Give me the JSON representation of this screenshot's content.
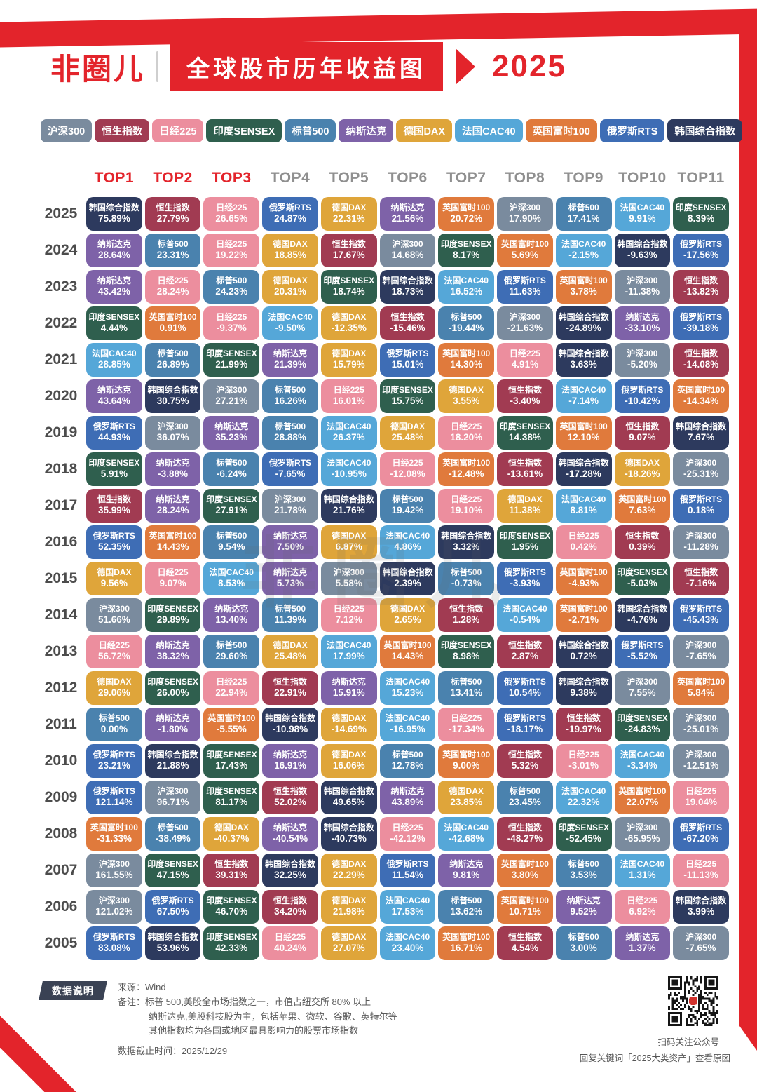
{
  "header": {
    "logo": "非圈儿",
    "title": "全球股市历年收益图",
    "year": "2025"
  },
  "watermark": "非圈儿",
  "accent_red": "#E3242B",
  "legend_order": [
    "沪深300",
    "恒生指数",
    "日经225",
    "印度SENSEX",
    "标普500",
    "纳斯达克",
    "德国DAX",
    "法国CAC40",
    "英国富时100",
    "俄罗斯RTS",
    "韩国综合指数"
  ],
  "index_colors": {
    "沪深300": "#7A8B9E",
    "恒生指数": "#A13B52",
    "日经225": "#EC8E9E",
    "印度SENSEX": "#2F5F4E",
    "标普500": "#4A82AE",
    "纳斯达克": "#7E62A8",
    "德国DAX": "#DFA53A",
    "法国CAC40": "#55A7D8",
    "英国富时100": "#E07A3C",
    "俄罗斯RTS": "#3E6DB5",
    "韩国综合指数": "#2D3A5E"
  },
  "chart_data": {
    "type": "heatmap",
    "title": "全球股市历年收益图 2025",
    "legend_position": "top",
    "columns": [
      "TOP1",
      "TOP2",
      "TOP3",
      "TOP4",
      "TOP5",
      "TOP6",
      "TOP7",
      "TOP8",
      "TOP9",
      "TOP10",
      "TOP11"
    ],
    "rows": [
      {
        "year": "2025",
        "cells": [
          [
            "韩国综合指数",
            "75.89%"
          ],
          [
            "恒生指数",
            "27.79%"
          ],
          [
            "日经225",
            "26.65%"
          ],
          [
            "俄罗斯RTS",
            "24.87%"
          ],
          [
            "德国DAX",
            "22.31%"
          ],
          [
            "纳斯达克",
            "21.56%"
          ],
          [
            "英国富时100",
            "20.72%"
          ],
          [
            "沪深300",
            "17.90%"
          ],
          [
            "标普500",
            "17.41%"
          ],
          [
            "法国CAC40",
            "9.91%"
          ],
          [
            "印度SENSEX",
            "8.39%"
          ]
        ]
      },
      {
        "year": "2024",
        "cells": [
          [
            "纳斯达克",
            "28.64%"
          ],
          [
            "标普500",
            "23.31%"
          ],
          [
            "日经225",
            "19.22%"
          ],
          [
            "德国DAX",
            "18.85%"
          ],
          [
            "恒生指数",
            "17.67%"
          ],
          [
            "沪深300",
            "14.68%"
          ],
          [
            "印度SENSEX",
            "8.17%"
          ],
          [
            "英国富时100",
            "5.69%"
          ],
          [
            "法国CAC40",
            "-2.15%"
          ],
          [
            "韩国综合指数",
            "-9.63%"
          ],
          [
            "俄罗斯RTS",
            "-17.56%"
          ]
        ]
      },
      {
        "year": "2023",
        "cells": [
          [
            "纳斯达克",
            "43.42%"
          ],
          [
            "日经225",
            "28.24%"
          ],
          [
            "标普500",
            "24.23%"
          ],
          [
            "德国DAX",
            "20.31%"
          ],
          [
            "印度SENSEX",
            "18.74%"
          ],
          [
            "韩国综合指数",
            "18.73%"
          ],
          [
            "法国CAC40",
            "16.52%"
          ],
          [
            "俄罗斯RTS",
            "11.63%"
          ],
          [
            "英国富时100",
            "3.78%"
          ],
          [
            "沪深300",
            "-11.38%"
          ],
          [
            "恒生指数",
            "-13.82%"
          ]
        ]
      },
      {
        "year": "2022",
        "cells": [
          [
            "印度SENSEX",
            "4.44%"
          ],
          [
            "英国富时100",
            "0.91%"
          ],
          [
            "日经225",
            "-9.37%"
          ],
          [
            "法国CAC40",
            "-9.50%"
          ],
          [
            "德国DAX",
            "-12.35%"
          ],
          [
            "恒生指数",
            "-15.46%"
          ],
          [
            "标普500",
            "-19.44%"
          ],
          [
            "沪深300",
            "-21.63%"
          ],
          [
            "韩国综合指数",
            "-24.89%"
          ],
          [
            "纳斯达克",
            "-33.10%"
          ],
          [
            "俄罗斯RTS",
            "-39.18%"
          ]
        ]
      },
      {
        "year": "2021",
        "cells": [
          [
            "法国CAC40",
            "28.85%"
          ],
          [
            "标普500",
            "26.89%"
          ],
          [
            "印度SENSEX",
            "21.99%"
          ],
          [
            "纳斯达克",
            "21.39%"
          ],
          [
            "德国DAX",
            "15.79%"
          ],
          [
            "俄罗斯RTS",
            "15.01%"
          ],
          [
            "英国富时100",
            "14.30%"
          ],
          [
            "日经225",
            "4.91%"
          ],
          [
            "韩国综合指数",
            "3.63%"
          ],
          [
            "沪深300",
            "-5.20%"
          ],
          [
            "恒生指数",
            "-14.08%"
          ]
        ]
      },
      {
        "year": "2020",
        "cells": [
          [
            "纳斯达克",
            "43.64%"
          ],
          [
            "韩国综合指数",
            "30.75%"
          ],
          [
            "沪深300",
            "27.21%"
          ],
          [
            "标普500",
            "16.26%"
          ],
          [
            "日经225",
            "16.01%"
          ],
          [
            "印度SENSEX",
            "15.75%"
          ],
          [
            "德国DAX",
            "3.55%"
          ],
          [
            "恒生指数",
            "-3.40%"
          ],
          [
            "法国CAC40",
            "-7.14%"
          ],
          [
            "俄罗斯RTS",
            "-10.42%"
          ],
          [
            "英国富时100",
            "-14.34%"
          ]
        ]
      },
      {
        "year": "2019",
        "cells": [
          [
            "俄罗斯RTS",
            "44.93%"
          ],
          [
            "沪深300",
            "36.07%"
          ],
          [
            "纳斯达克",
            "35.23%"
          ],
          [
            "标普500",
            "28.88%"
          ],
          [
            "法国CAC40",
            "26.37%"
          ],
          [
            "德国DAX",
            "25.48%"
          ],
          [
            "日经225",
            "18.20%"
          ],
          [
            "印度SENSEX",
            "14.38%"
          ],
          [
            "英国富时100",
            "12.10%"
          ],
          [
            "恒生指数",
            "9.07%"
          ],
          [
            "韩国综合指数",
            "7.67%"
          ]
        ]
      },
      {
        "year": "2018",
        "cells": [
          [
            "印度SENSEX",
            "5.91%"
          ],
          [
            "纳斯达克",
            "-3.88%"
          ],
          [
            "标普500",
            "-6.24%"
          ],
          [
            "俄罗斯RTS",
            "-7.65%"
          ],
          [
            "法国CAC40",
            "-10.95%"
          ],
          [
            "日经225",
            "-12.08%"
          ],
          [
            "英国富时100",
            "-12.48%"
          ],
          [
            "恒生指数",
            "-13.61%"
          ],
          [
            "韩国综合指数",
            "-17.28%"
          ],
          [
            "德国DAX",
            "-18.26%"
          ],
          [
            "沪深300",
            "-25.31%"
          ]
        ]
      },
      {
        "year": "2017",
        "cells": [
          [
            "恒生指数",
            "35.99%"
          ],
          [
            "纳斯达克",
            "28.24%"
          ],
          [
            "印度SENSEX",
            "27.91%"
          ],
          [
            "沪深300",
            "21.78%"
          ],
          [
            "韩国综合指数",
            "21.76%"
          ],
          [
            "标普500",
            "19.42%"
          ],
          [
            "日经225",
            "19.10%"
          ],
          [
            "德国DAX",
            "11.38%"
          ],
          [
            "法国CAC40",
            "8.81%"
          ],
          [
            "英国富时100",
            "7.63%"
          ],
          [
            "俄罗斯RTS",
            "0.18%"
          ]
        ]
      },
      {
        "year": "2016",
        "cells": [
          [
            "俄罗斯RTS",
            "52.35%"
          ],
          [
            "英国富时100",
            "14.43%"
          ],
          [
            "标普500",
            "9.54%"
          ],
          [
            "纳斯达克",
            "7.50%"
          ],
          [
            "德国DAX",
            "6.87%"
          ],
          [
            "法国CAC40",
            "4.86%"
          ],
          [
            "韩国综合指数",
            "3.32%"
          ],
          [
            "印度SENSEX",
            "1.95%"
          ],
          [
            "日经225",
            "0.42%"
          ],
          [
            "恒生指数",
            "0.39%"
          ],
          [
            "沪深300",
            "-11.28%"
          ]
        ]
      },
      {
        "year": "2015",
        "cells": [
          [
            "德国DAX",
            "9.56%"
          ],
          [
            "日经225",
            "9.07%"
          ],
          [
            "法国CAC40",
            "8.53%"
          ],
          [
            "纳斯达克",
            "5.73%"
          ],
          [
            "沪深300",
            "5.58%"
          ],
          [
            "韩国综合指数",
            "2.39%"
          ],
          [
            "标普500",
            "-0.73%"
          ],
          [
            "俄罗斯RTS",
            "-3.93%"
          ],
          [
            "英国富时100",
            "-4.93%"
          ],
          [
            "印度SENSEX",
            "-5.03%"
          ],
          [
            "恒生指数",
            "-7.16%"
          ]
        ]
      },
      {
        "year": "2014",
        "cells": [
          [
            "沪深300",
            "51.66%"
          ],
          [
            "印度SENSEX",
            "29.89%"
          ],
          [
            "纳斯达克",
            "13.40%"
          ],
          [
            "标普500",
            "11.39%"
          ],
          [
            "日经225",
            "7.12%"
          ],
          [
            "德国DAX",
            "2.65%"
          ],
          [
            "恒生指数",
            "1.28%"
          ],
          [
            "法国CAC40",
            "-0.54%"
          ],
          [
            "英国富时100",
            "-2.71%"
          ],
          [
            "韩国综合指数",
            "-4.76%"
          ],
          [
            "俄罗斯RTS",
            "-45.43%"
          ]
        ]
      },
      {
        "year": "2013",
        "cells": [
          [
            "日经225",
            "56.72%"
          ],
          [
            "纳斯达克",
            "38.32%"
          ],
          [
            "标普500",
            "29.60%"
          ],
          [
            "德国DAX",
            "25.48%"
          ],
          [
            "法国CAC40",
            "17.99%"
          ],
          [
            "英国富时100",
            "14.43%"
          ],
          [
            "印度SENSEX",
            "8.98%"
          ],
          [
            "恒生指数",
            "2.87%"
          ],
          [
            "韩国综合指数",
            "0.72%"
          ],
          [
            "俄罗斯RTS",
            "-5.52%"
          ],
          [
            "沪深300",
            "-7.65%"
          ]
        ]
      },
      {
        "year": "2012",
        "cells": [
          [
            "德国DAX",
            "29.06%"
          ],
          [
            "印度SENSEX",
            "26.00%"
          ],
          [
            "日经225",
            "22.94%"
          ],
          [
            "恒生指数",
            "22.91%"
          ],
          [
            "纳斯达克",
            "15.91%"
          ],
          [
            "法国CAC40",
            "15.23%"
          ],
          [
            "标普500",
            "13.41%"
          ],
          [
            "俄罗斯RTS",
            "10.54%"
          ],
          [
            "韩国综合指数",
            "9.38%"
          ],
          [
            "沪深300",
            "7.55%"
          ],
          [
            "英国富时100",
            "5.84%"
          ]
        ]
      },
      {
        "year": "2011",
        "cells": [
          [
            "标普500",
            "0.00%"
          ],
          [
            "纳斯达克",
            "-1.80%"
          ],
          [
            "英国富时100",
            "-5.55%"
          ],
          [
            "韩国综合指数",
            "-10.98%"
          ],
          [
            "德国DAX",
            "-14.69%"
          ],
          [
            "法国CAC40",
            "-16.95%"
          ],
          [
            "日经225",
            "-17.34%"
          ],
          [
            "俄罗斯RTS",
            "-18.17%"
          ],
          [
            "恒生指数",
            "-19.97%"
          ],
          [
            "印度SENSEX",
            "-24.83%"
          ],
          [
            "沪深300",
            "-25.01%"
          ]
        ]
      },
      {
        "year": "2010",
        "cells": [
          [
            "俄罗斯RTS",
            "23.21%"
          ],
          [
            "韩国综合指数",
            "21.88%"
          ],
          [
            "印度SENSEX",
            "17.43%"
          ],
          [
            "纳斯达克",
            "16.91%"
          ],
          [
            "德国DAX",
            "16.06%"
          ],
          [
            "标普500",
            "12.78%"
          ],
          [
            "英国富时100",
            "9.00%"
          ],
          [
            "恒生指数",
            "5.32%"
          ],
          [
            "日经225",
            "-3.01%"
          ],
          [
            "法国CAC40",
            "-3.34%"
          ],
          [
            "沪深300",
            "-12.51%"
          ]
        ]
      },
      {
        "year": "2009",
        "cells": [
          [
            "俄罗斯RTS",
            "121.14%"
          ],
          [
            "沪深300",
            "96.71%"
          ],
          [
            "印度SENSEX",
            "81.17%"
          ],
          [
            "恒生指数",
            "52.02%"
          ],
          [
            "韩国综合指数",
            "49.65%"
          ],
          [
            "纳斯达克",
            "43.89%"
          ],
          [
            "德国DAX",
            "23.85%"
          ],
          [
            "标普500",
            "23.45%"
          ],
          [
            "法国CAC40",
            "22.32%"
          ],
          [
            "英国富时100",
            "22.07%"
          ],
          [
            "日经225",
            "19.04%"
          ]
        ]
      },
      {
        "year": "2008",
        "cells": [
          [
            "英国富时100",
            "-31.33%"
          ],
          [
            "标普500",
            "-38.49%"
          ],
          [
            "德国DAX",
            "-40.37%"
          ],
          [
            "纳斯达克",
            "-40.54%"
          ],
          [
            "韩国综合指数",
            "-40.73%"
          ],
          [
            "日经225",
            "-42.12%"
          ],
          [
            "法国CAC40",
            "-42.68%"
          ],
          [
            "恒生指数",
            "-48.27%"
          ],
          [
            "印度SENSEX",
            "-52.45%"
          ],
          [
            "沪深300",
            "-65.95%"
          ],
          [
            "俄罗斯RTS",
            "-67.20%"
          ]
        ]
      },
      {
        "year": "2007",
        "cells": [
          [
            "沪深300",
            "161.55%"
          ],
          [
            "印度SENSEX",
            "47.15%"
          ],
          [
            "恒生指数",
            "39.31%"
          ],
          [
            "韩国综合指数",
            "32.25%"
          ],
          [
            "德国DAX",
            "22.29%"
          ],
          [
            "俄罗斯RTS",
            "11.54%"
          ],
          [
            "纳斯达克",
            "9.81%"
          ],
          [
            "英国富时100",
            "3.80%"
          ],
          [
            "标普500",
            "3.53%"
          ],
          [
            "法国CAC40",
            "1.31%"
          ],
          [
            "日经225",
            "-11.13%"
          ]
        ]
      },
      {
        "year": "2006",
        "cells": [
          [
            "沪深300",
            "121.02%"
          ],
          [
            "俄罗斯RTS",
            "67.50%"
          ],
          [
            "印度SENSEX",
            "46.70%"
          ],
          [
            "恒生指数",
            "34.20%"
          ],
          [
            "德国DAX",
            "21.98%"
          ],
          [
            "法国CAC40",
            "17.53%"
          ],
          [
            "标普500",
            "13.62%"
          ],
          [
            "英国富时100",
            "10.71%"
          ],
          [
            "纳斯达克",
            "9.52%"
          ],
          [
            "日经225",
            "6.92%"
          ],
          [
            "韩国综合指数",
            "3.99%"
          ]
        ]
      },
      {
        "year": "2005",
        "cells": [
          [
            "俄罗斯RTS",
            "83.08%"
          ],
          [
            "韩国综合指数",
            "53.96%"
          ],
          [
            "印度SENSEX",
            "42.33%"
          ],
          [
            "日经225",
            "40.24%"
          ],
          [
            "德国DAX",
            "27.07%"
          ],
          [
            "法国CAC40",
            "23.40%"
          ],
          [
            "英国富时100",
            "16.71%"
          ],
          [
            "恒生指数",
            "4.54%"
          ],
          [
            "标普500",
            "3.00%"
          ],
          [
            "纳斯达克",
            "1.37%"
          ],
          [
            "沪深300",
            "-7.65%"
          ]
        ]
      }
    ]
  },
  "footer": {
    "label": "数据说明",
    "source": "来源：Wind",
    "note_label": "备注：",
    "note_lines": [
      "标普 500,美股全市场指数之一，市值占纽交所 80% 以上",
      "纳斯达克,美股科技股为主，包括苹果、微软、谷歌、英特尔等",
      "其他指数均为各国或地区最具影响力的股票市场指数"
    ],
    "cutoff": "数据截止时间：2025/12/29",
    "qr_caption1": "扫码关注公众号",
    "qr_caption2": "回复关键词「2025大类资产」查看原图"
  }
}
